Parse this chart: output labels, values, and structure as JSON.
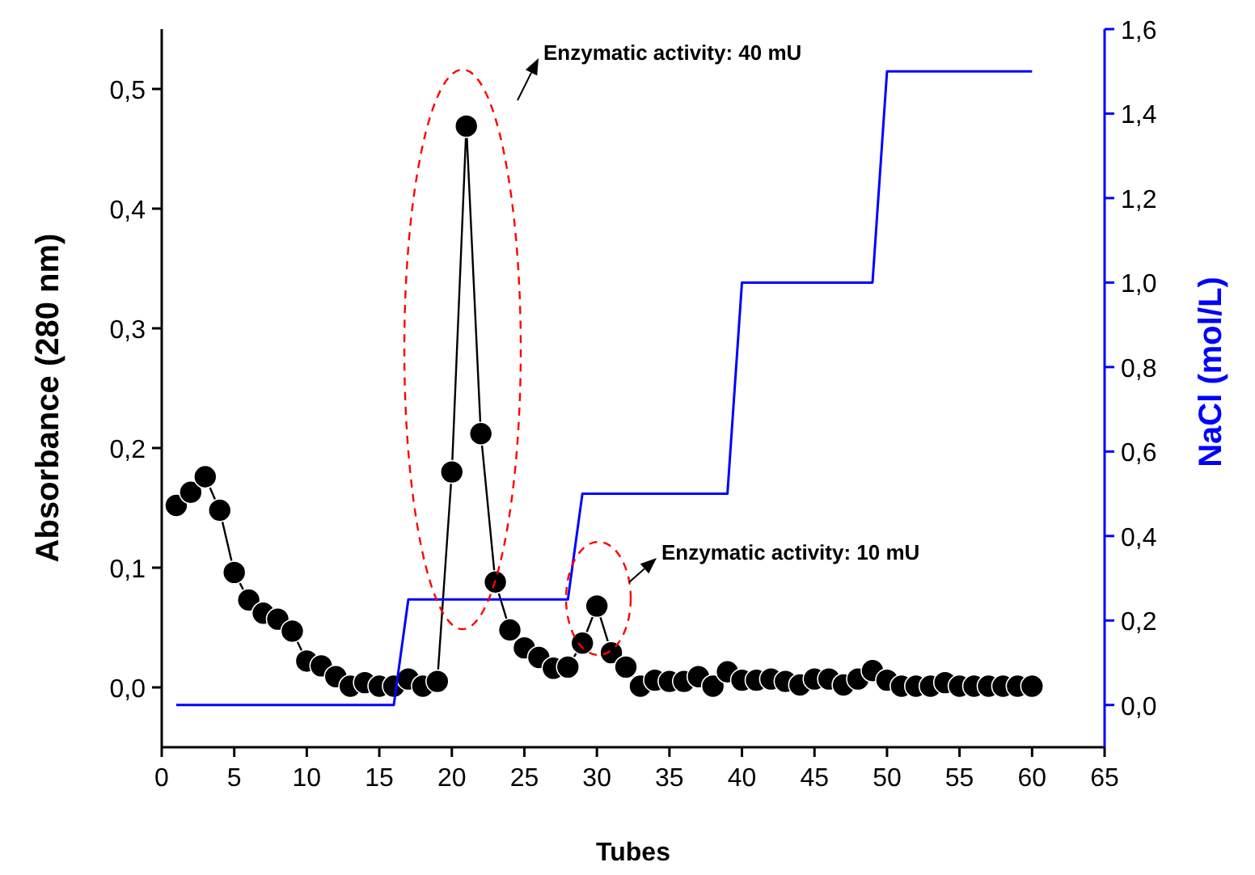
{
  "chart_data": {
    "type": "line",
    "xlabel": "Tubes",
    "ylabel": "Absorbance (280 nm)",
    "y2label": "NaCl (mol/L)",
    "xlim": [
      0,
      65
    ],
    "xticks": [
      0,
      5,
      10,
      15,
      20,
      25,
      30,
      35,
      40,
      45,
      50,
      55,
      60,
      65
    ],
    "ylim": [
      -0.05,
      0.55
    ],
    "yticks": [
      {
        "value": 0,
        "label": "0,0"
      },
      {
        "value": 0.1,
        "label": "0,1"
      },
      {
        "value": 0.2,
        "label": "0,2"
      },
      {
        "value": 0.3,
        "label": "0,3"
      },
      {
        "value": 0.4,
        "label": "0,4"
      },
      {
        "value": 0.5,
        "label": "0,5"
      }
    ],
    "y2lim": [
      -0.1,
      1.6
    ],
    "y2ticks": [
      {
        "value": 0,
        "label": "0,0"
      },
      {
        "value": 0.2,
        "label": "0,2"
      },
      {
        "value": 0.4,
        "label": "0,4"
      },
      {
        "value": 0.6,
        "label": "0,6"
      },
      {
        "value": 0.8,
        "label": "0,8"
      },
      {
        "value": 1.0,
        "label": "1,0"
      },
      {
        "value": 1.2,
        "label": "1,2"
      },
      {
        "value": 1.4,
        "label": "1,4"
      },
      {
        "value": 1.6,
        "label": "1,6"
      }
    ],
    "grid": false,
    "series": [
      {
        "type": "line",
        "color": "#000000",
        "marker": "circle",
        "line_style": "solid",
        "x": [
          1,
          2,
          3,
          4,
          5,
          6,
          7,
          8,
          9,
          10,
          11,
          12,
          13,
          14,
          15,
          16,
          17,
          18,
          19,
          20,
          21,
          22,
          23,
          24,
          25,
          26,
          27,
          28,
          29,
          30,
          31,
          32,
          33,
          34,
          35,
          36,
          37,
          38,
          39,
          40,
          41,
          42,
          43,
          44,
          45,
          46,
          47,
          48,
          49,
          50,
          51,
          52,
          53,
          54,
          55,
          56,
          57,
          58,
          59,
          60
        ],
        "values": [
          0.152,
          0.163,
          0.176,
          0.148,
          0.096,
          0.073,
          0.062,
          0.057,
          0.047,
          0.022,
          0.018,
          0.009,
          0.001,
          0.004,
          0.001,
          0.001,
          0.007,
          0.001,
          0.005,
          0.18,
          0.469,
          0.212,
          0.088,
          0.048,
          0.033,
          0.025,
          0.016,
          0.017,
          0.037,
          0.068,
          0.029,
          0.017,
          0.001,
          0.006,
          0.005,
          0.005,
          0.009,
          0.001,
          0.013,
          0.006,
          0.006,
          0.007,
          0.005,
          0.002,
          0.007,
          0.007,
          0.002,
          0.007,
          0.014,
          0.006,
          0.001,
          0.001,
          0.001,
          0.004,
          0.001,
          0.001,
          0.001,
          0.001,
          0.001,
          0.001
        ]
      },
      {
        "type": "line",
        "color": "#0000ff",
        "marker": "none",
        "line_style": "solid",
        "axis": "y2",
        "x": [
          1,
          16,
          17,
          28,
          29,
          39,
          40,
          49,
          50,
          60
        ],
        "values": [
          0,
          0,
          0.25,
          0.25,
          0.5,
          0.5,
          1.0,
          1.0,
          1.5,
          1.5
        ]
      }
    ],
    "annotations": [
      "Enzymatic activity: 40 mU",
      "Enzymatic activity: 10 mU"
    ]
  }
}
